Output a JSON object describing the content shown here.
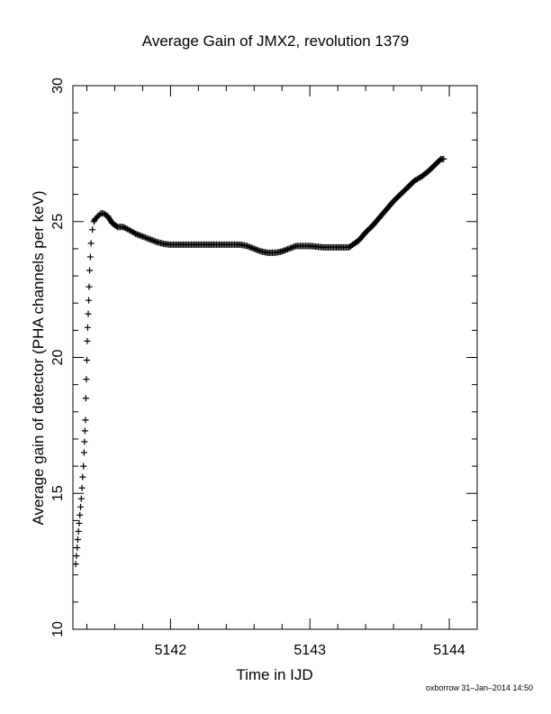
{
  "chart_data": {
    "type": "scatter",
    "title": "Average Gain of JMX2, revolution 1379",
    "xlabel": "Time in IJD",
    "ylabel": "Average gain of detector (PHA channels per keV)",
    "xlim": [
      5141.3,
      5144.2
    ],
    "ylim": [
      10,
      30
    ],
    "xticks": [
      5142,
      5143,
      5144
    ],
    "xtick_labels": [
      "5142",
      "5143",
      "5144"
    ],
    "yticks": [
      10,
      15,
      20,
      25,
      30
    ],
    "ytick_labels": [
      "10",
      "15",
      "20",
      "25",
      "30"
    ],
    "grid": false,
    "marker": "+",
    "series": [
      {
        "x": [
          5141.32,
          5141.325,
          5141.33,
          5141.335,
          5141.34,
          5141.345,
          5141.35,
          5141.355,
          5141.36,
          5141.365,
          5141.37,
          5141.375,
          5141.38,
          5141.383,
          5141.386,
          5141.39,
          5141.393,
          5141.396,
          5141.4,
          5141.403,
          5141.406,
          5141.41,
          5141.413,
          5141.416,
          5141.42,
          5141.425,
          5141.43,
          5141.44,
          5141.45,
          5141.46,
          5141.48,
          5141.5,
          5141.52,
          5141.55,
          5141.58,
          5141.62,
          5141.66,
          5141.7,
          5141.75,
          5141.8,
          5141.85,
          5141.9,
          5141.95,
          5142.0,
          5142.05,
          5142.1,
          5142.2,
          5142.3,
          5142.4,
          5142.5,
          5142.55,
          5142.6,
          5142.65,
          5142.7,
          5142.75,
          5142.8,
          5142.85,
          5142.9,
          5143.0,
          5143.1,
          5143.2,
          5143.28,
          5143.35,
          5143.4,
          5143.45,
          5143.5,
          5143.55,
          5143.6,
          5143.65,
          5143.7,
          5143.75,
          5143.8,
          5143.85,
          5143.9,
          5143.94,
          5143.96
        ],
        "y": [
          12.4,
          12.7,
          13.0,
          13.3,
          13.6,
          13.9,
          14.2,
          14.5,
          14.8,
          15.2,
          15.6,
          16.0,
          16.5,
          16.9,
          17.3,
          17.7,
          18.5,
          19.2,
          19.9,
          20.6,
          21.1,
          21.6,
          22.1,
          22.6,
          23.2,
          23.7,
          24.2,
          24.7,
          25.0,
          25.1,
          25.2,
          25.3,
          25.3,
          25.2,
          24.95,
          24.8,
          24.8,
          24.7,
          24.55,
          24.45,
          24.35,
          24.25,
          24.18,
          24.15,
          24.15,
          24.15,
          24.15,
          24.15,
          24.15,
          24.15,
          24.1,
          24.0,
          23.9,
          23.85,
          23.85,
          23.9,
          24.0,
          24.1,
          24.1,
          24.05,
          24.05,
          24.05,
          24.3,
          24.6,
          24.85,
          25.15,
          25.45,
          25.75,
          26.0,
          26.25,
          26.5,
          26.65,
          26.85,
          27.1,
          27.3,
          27.3
        ]
      }
    ]
  },
  "footer": {
    "stamp": "oxborrow 31–Jan–2014 14:50"
  }
}
